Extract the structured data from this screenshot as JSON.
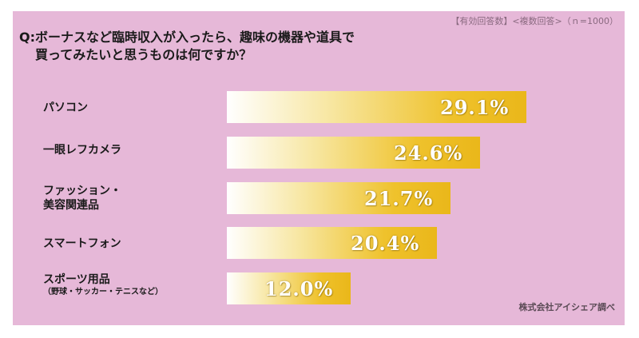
{
  "note": "【有効回答数】<複数回答>（ｎ=1000）",
  "question": {
    "line1": "Q:ボーナスなど臨時収入が入ったら、趣味の機器や道具で",
    "line2": "買ってみたいと思うものは何ですか？"
  },
  "source": "株式会社アイシェア調べ",
  "colors": {
    "background": "#e6b8d8",
    "bar_end": "#eab71a",
    "bar_start": "#ffffff"
  },
  "chart_data": {
    "type": "bar",
    "orientation": "horizontal",
    "categories": [
      {
        "label": "パソコン",
        "sub": ""
      },
      {
        "label": "一眼レフカメラ",
        "sub": ""
      },
      {
        "label": "ファッション・\n美容関連品",
        "sub": ""
      },
      {
        "label": "スマートフォン",
        "sub": ""
      },
      {
        "label": "スポーツ用品",
        "sub": "（野球・サッカー・テニスなど）"
      }
    ],
    "values": [
      29.1,
      24.6,
      21.7,
      20.4,
      12.0
    ],
    "value_labels": [
      "29.1%",
      "24.6%",
      "21.7%",
      "20.4%",
      "12.0%"
    ],
    "unit": "%",
    "xlim": [
      0,
      30
    ],
    "grid": false,
    "legend": "none"
  }
}
